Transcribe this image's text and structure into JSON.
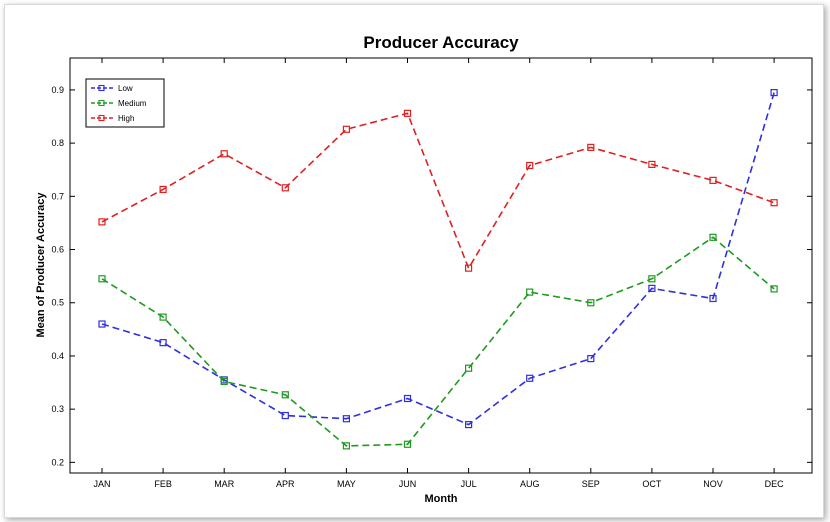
{
  "chart_data": {
    "type": "line",
    "title": "Producer Accuracy",
    "xlabel": "Month",
    "ylabel": "Mean of Producer Accuracy",
    "categories": [
      "JAN",
      "FEB",
      "MAR",
      "APR",
      "MAY",
      "JUN",
      "JUL",
      "AUG",
      "SEP",
      "OCT",
      "NOV",
      "DEC"
    ],
    "ylim": [
      0.18,
      0.96
    ],
    "yticks": [
      "0.2",
      "0.3",
      "0.4",
      "0.5",
      "0.6",
      "0.7",
      "0.8",
      "0.9"
    ],
    "grid": false,
    "legend": "top-left",
    "series": [
      {
        "name": "Low",
        "color": "#2f2fe0",
        "values": [
          0.46,
          0.425,
          0.355,
          0.288,
          0.282,
          0.32,
          0.271,
          0.358,
          0.395,
          0.527,
          0.508,
          0.895
        ]
      },
      {
        "name": "Medium",
        "color": "#1f9a1f",
        "values": [
          0.545,
          0.473,
          0.352,
          0.327,
          0.231,
          0.234,
          0.377,
          0.52,
          0.5,
          0.545,
          0.623,
          0.526
        ]
      },
      {
        "name": "High",
        "color": "#e02020",
        "values": [
          0.652,
          0.713,
          0.78,
          0.716,
          0.826,
          0.856,
          0.565,
          0.758,
          0.792,
          0.76,
          0.73,
          0.688
        ]
      }
    ]
  }
}
